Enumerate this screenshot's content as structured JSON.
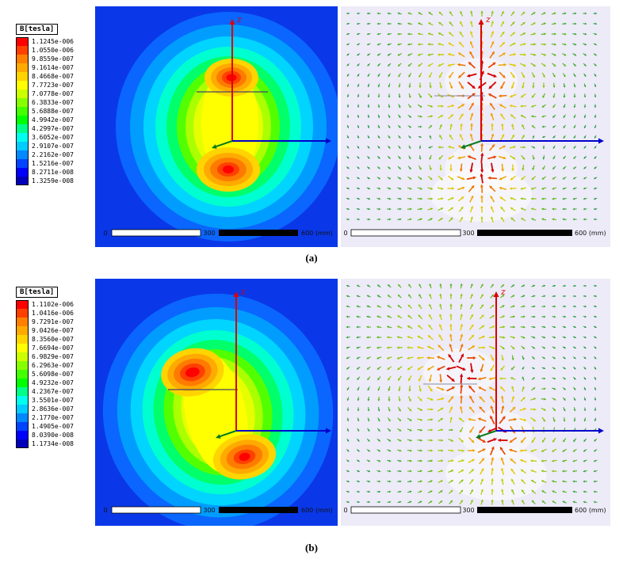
{
  "figure": {
    "panels": [
      {
        "label": "(a)",
        "legend": {
          "title": "B[tesla]",
          "values": [
            "1.1245e-006",
            "1.0550e-006",
            "9.8559e-007",
            "9.1614e-007",
            "8.4668e-007",
            "7.7723e-007",
            "7.0778e-007",
            "6.3833e-007",
            "5.6888e-007",
            "4.9942e-007",
            "4.2997e-007",
            "3.6052e-007",
            "2.9107e-007",
            "2.2162e-007",
            "1.5216e-007",
            "8.2711e-008",
            "1.3259e-008"
          ]
        },
        "scale": {
          "start": "0",
          "mid": "300",
          "end": "600 (mm)"
        },
        "axis_label_z": "z"
      },
      {
        "label": "(b)",
        "legend": {
          "title": "B[tesla]",
          "values": [
            "1.1102e-006",
            "1.0416e-006",
            "9.7291e-007",
            "9.0426e-007",
            "8.3560e-007",
            "7.6694e-007",
            "6.9829e-007",
            "6.2963e-007",
            "5.6098e-007",
            "4.9232e-007",
            "4.2367e-007",
            "3.5501e-007",
            "2.8636e-007",
            "2.1770e-007",
            "1.4905e-007",
            "8.0390e-008",
            "1.1734e-008"
          ]
        },
        "scale": {
          "start": "0",
          "mid": "300",
          "end": "600 (mm)"
        },
        "axis_label_z": "z"
      }
    ]
  },
  "colors": {
    "legend_bands": [
      "#ff0000",
      "#ff4000",
      "#ff8000",
      "#ffaa00",
      "#ffd400",
      "#ffff00",
      "#ccff00",
      "#88ff00",
      "#44ff00",
      "#00ff00",
      "#00ff88",
      "#00ffee",
      "#00ccff",
      "#0088ff",
      "#0044ff",
      "#0000ff",
      "#0000bb"
    ],
    "vector_palette": [
      "#d40000",
      "#e84300",
      "#ef7600",
      "#f0a400",
      "#e2c800",
      "#bccf00",
      "#8cc40a",
      "#58b418",
      "#32a432",
      "#229a44"
    ],
    "contour_background": "#0a38e8",
    "vector_background": "#edebf7",
    "axis_z": "#dd0000",
    "axis_x": "#0000cc",
    "origin_marker": "#0a7a1e",
    "scale_text": "#111111"
  },
  "chart_data": [
    {
      "type": "heatmap",
      "panel": "(a)",
      "quantity": "B",
      "units": "tesla",
      "legend_levels_tesla": [
        1.1245e-06,
        1.055e-06,
        9.8559e-07,
        9.1614e-07,
        8.4668e-07,
        7.7723e-07,
        7.0778e-07,
        6.3833e-07,
        5.6888e-07,
        4.9942e-07,
        4.2997e-07,
        3.6052e-07,
        2.9107e-07,
        2.2162e-07,
        1.5216e-07,
        8.2711e-08,
        1.3259e-08
      ],
      "scale_bar_mm": [
        0,
        300,
        600
      ],
      "views": [
        "contour-magnitude",
        "vector-field"
      ],
      "description": "Magnetic flux density B: filled contour magnitude plot (left) and vector field plot (right), dipole-like field with two hotspots along vertical z-axis"
    },
    {
      "type": "heatmap",
      "panel": "(b)",
      "quantity": "B",
      "units": "tesla",
      "legend_levels_tesla": [
        1.1102e-06,
        1.0416e-06,
        9.7291e-07,
        9.0426e-07,
        8.356e-07,
        7.6694e-07,
        6.9829e-07,
        6.2963e-07,
        5.6098e-07,
        4.9232e-07,
        4.2367e-07,
        3.5501e-07,
        2.8636e-07,
        2.177e-07,
        1.4905e-07,
        8.039e-08,
        1.1734e-08
      ],
      "scale_bar_mm": [
        0,
        300,
        600
      ],
      "views": [
        "contour-magnitude",
        "vector-field"
      ],
      "description": "Magnetic flux density B with tilted coil: filled contour magnitude plot (left) and vector field plot (right), two hotspots offset from z-axis"
    }
  ]
}
